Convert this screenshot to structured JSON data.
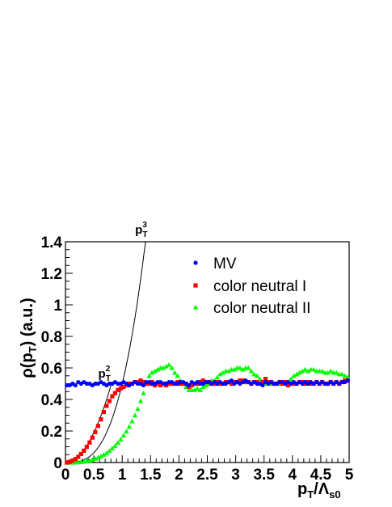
{
  "chart_data": {
    "type": "scatter",
    "xlabel": {
      "main": "p",
      "sub1": "T",
      "slash": "/Λ",
      "sub2": "s0"
    },
    "ylabel": {
      "prefix": "ρ(p",
      "sub": "T",
      "suffix": ") (a.u.)"
    },
    "xlim": [
      0,
      5
    ],
    "ylim": [
      0,
      1.4
    ],
    "x_ticks": [
      0,
      0.5,
      1,
      1.5,
      2,
      2.5,
      3,
      3.5,
      4,
      4.5,
      5
    ],
    "x_tick_labels": [
      "0",
      "0.5",
      "1",
      "1.5",
      "2",
      "2.5",
      "3",
      "3.5",
      "4",
      "4.5",
      "5"
    ],
    "y_ticks": [
      0,
      0.2,
      0.4,
      0.6,
      0.8,
      1.0,
      1.2,
      1.4
    ],
    "y_tick_labels": [
      "0",
      "0.2",
      "0.4",
      "0.6",
      "0.8",
      "1",
      "1.2",
      "1.4"
    ],
    "grid": false,
    "legend_position": "top-right",
    "series": [
      {
        "name": "MV",
        "color": "#0000ff",
        "marker": "circle",
        "x": [
          0.025,
          0.075,
          0.125,
          0.175,
          0.225,
          0.275,
          0.325,
          0.375,
          0.425,
          0.475,
          0.525,
          0.575,
          0.625,
          0.675,
          0.725,
          0.775,
          0.825,
          0.875,
          0.925,
          0.975,
          1.025,
          1.075,
          1.125,
          1.175,
          1.225,
          1.275,
          1.325,
          1.375,
          1.425,
          1.475,
          1.525,
          1.575,
          1.625,
          1.675,
          1.725,
          1.775,
          1.825,
          1.875,
          1.925,
          1.975,
          2.025,
          2.075,
          2.125,
          2.175,
          2.225,
          2.275,
          2.325,
          2.375,
          2.425,
          2.475,
          2.525,
          2.575,
          2.625,
          2.675,
          2.725,
          2.775,
          2.825,
          2.875,
          2.925,
          2.975,
          3.025,
          3.075,
          3.125,
          3.175,
          3.225,
          3.275,
          3.325,
          3.375,
          3.425,
          3.475,
          3.525,
          3.575,
          3.625,
          3.675,
          3.725,
          3.775,
          3.825,
          3.875,
          3.925,
          3.975,
          4.025,
          4.075,
          4.125,
          4.175,
          4.225,
          4.275,
          4.325,
          4.375,
          4.425,
          4.475,
          4.525,
          4.575,
          4.625,
          4.675,
          4.725,
          4.775,
          4.825,
          4.875,
          4.925,
          4.975
        ],
        "y": [
          0.49,
          0.49,
          0.5,
          0.49,
          0.51,
          0.5,
          0.51,
          0.5,
          0.5,
          0.49,
          0.5,
          0.5,
          0.51,
          0.5,
          0.49,
          0.5,
          0.5,
          0.51,
          0.5,
          0.5,
          0.51,
          0.5,
          0.49,
          0.5,
          0.51,
          0.5,
          0.5,
          0.49,
          0.51,
          0.51,
          0.5,
          0.5,
          0.51,
          0.51,
          0.5,
          0.5,
          0.51,
          0.51,
          0.5,
          0.5,
          0.51,
          0.51,
          0.5,
          0.49,
          0.51,
          0.5,
          0.51,
          0.5,
          0.5,
          0.51,
          0.51,
          0.5,
          0.51,
          0.5,
          0.51,
          0.5,
          0.5,
          0.51,
          0.52,
          0.5,
          0.51,
          0.5,
          0.51,
          0.52,
          0.51,
          0.5,
          0.51,
          0.5,
          0.5,
          0.49,
          0.51,
          0.5,
          0.51,
          0.5,
          0.5,
          0.51,
          0.51,
          0.5,
          0.51,
          0.5,
          0.51,
          0.5,
          0.51,
          0.5,
          0.51,
          0.5,
          0.51,
          0.5,
          0.51,
          0.5,
          0.51,
          0.5,
          0.5,
          0.51,
          0.5,
          0.51,
          0.5,
          0.51,
          0.51,
          0.52
        ]
      },
      {
        "name": "color neutral I",
        "color": "#ff0000",
        "marker": "square",
        "x": [
          0.025,
          0.075,
          0.125,
          0.175,
          0.225,
          0.275,
          0.325,
          0.375,
          0.425,
          0.475,
          0.525,
          0.575,
          0.625,
          0.675,
          0.725,
          0.775,
          0.825,
          0.875,
          0.925,
          0.975,
          1.025,
          1.075,
          1.125,
          1.175,
          1.225,
          1.275,
          1.325,
          1.375,
          1.425,
          1.475,
          1.525,
          1.575,
          1.625,
          1.675,
          1.725,
          1.775,
          1.825,
          1.875,
          1.925,
          1.975,
          2.025,
          2.075,
          2.125,
          2.175,
          2.225,
          2.275,
          2.325,
          2.375,
          2.425,
          2.475,
          2.525,
          2.575,
          2.625,
          2.675,
          2.725,
          2.775,
          2.825,
          2.875,
          2.925,
          2.975,
          3.025,
          3.075,
          3.125,
          3.175,
          3.225,
          3.275,
          3.325,
          3.375,
          3.425,
          3.475,
          3.525,
          3.575,
          3.625,
          3.675,
          3.725,
          3.775,
          3.825,
          3.875,
          3.925,
          3.975,
          4.025,
          4.075,
          4.125,
          4.175,
          4.225,
          4.275,
          4.325,
          4.375,
          4.425,
          4.475,
          4.525,
          4.575,
          4.625,
          4.675,
          4.725,
          4.775,
          4.825,
          4.875,
          4.925,
          4.975
        ],
        "y": [
          0.0,
          0.005,
          0.012,
          0.022,
          0.036,
          0.054,
          0.075,
          0.099,
          0.127,
          0.158,
          0.193,
          0.232,
          0.274,
          0.32,
          0.36,
          0.39,
          0.42,
          0.44,
          0.46,
          0.47,
          0.48,
          0.49,
          0.5,
          0.5,
          0.51,
          0.51,
          0.52,
          0.51,
          0.5,
          0.5,
          0.51,
          0.49,
          0.5,
          0.49,
          0.5,
          0.49,
          0.5,
          0.5,
          0.5,
          0.51,
          0.5,
          0.5,
          0.5,
          0.48,
          0.49,
          0.5,
          0.5,
          0.51,
          0.52,
          0.51,
          0.51,
          0.5,
          0.5,
          0.51,
          0.5,
          0.5,
          0.51,
          0.51,
          0.5,
          0.51,
          0.51,
          0.52,
          0.52,
          0.51,
          0.51,
          0.5,
          0.51,
          0.51,
          0.5,
          0.51,
          0.53,
          0.51,
          0.51,
          0.5,
          0.5,
          0.51,
          0.5,
          0.51,
          0.49,
          0.5,
          0.5,
          0.5,
          0.51,
          0.51,
          0.5,
          0.51,
          0.5,
          0.5,
          0.51,
          0.5,
          0.51,
          0.5,
          0.5,
          0.51,
          0.5,
          0.51,
          0.5,
          0.51,
          0.52,
          0.52
        ]
      },
      {
        "name": "color neutral II",
        "color": "#00ff00",
        "marker": "triangle",
        "x": [
          0.025,
          0.075,
          0.125,
          0.175,
          0.225,
          0.275,
          0.325,
          0.375,
          0.425,
          0.475,
          0.525,
          0.575,
          0.625,
          0.675,
          0.725,
          0.775,
          0.825,
          0.875,
          0.925,
          0.975,
          1.025,
          1.075,
          1.125,
          1.175,
          1.225,
          1.275,
          1.325,
          1.375,
          1.425,
          1.475,
          1.525,
          1.575,
          1.625,
          1.675,
          1.725,
          1.775,
          1.825,
          1.875,
          1.925,
          1.975,
          2.025,
          2.075,
          2.125,
          2.175,
          2.225,
          2.275,
          2.325,
          2.375,
          2.425,
          2.475,
          2.525,
          2.575,
          2.625,
          2.675,
          2.725,
          2.775,
          2.825,
          2.875,
          2.925,
          2.975,
          3.025,
          3.075,
          3.125,
          3.175,
          3.225,
          3.275,
          3.325,
          3.375,
          3.425,
          3.475,
          3.525,
          3.575,
          3.625,
          3.675,
          3.725,
          3.775,
          3.825,
          3.875,
          3.925,
          3.975,
          4.025,
          4.075,
          4.125,
          4.175,
          4.225,
          4.275,
          4.325,
          4.375,
          4.425,
          4.475,
          4.525,
          4.575,
          4.625,
          4.675,
          4.725,
          4.775,
          4.825,
          4.875,
          4.925,
          4.975
        ],
        "y": [
          0.0,
          0.0,
          0.0,
          0.001,
          0.002,
          0.004,
          0.006,
          0.009,
          0.013,
          0.018,
          0.024,
          0.032,
          0.04,
          0.05,
          0.06,
          0.074,
          0.09,
          0.106,
          0.126,
          0.148,
          0.172,
          0.198,
          0.228,
          0.262,
          0.3,
          0.34,
          0.39,
          0.44,
          0.5,
          0.55,
          0.57,
          0.58,
          0.59,
          0.6,
          0.6,
          0.61,
          0.62,
          0.6,
          0.57,
          0.55,
          0.52,
          0.5,
          0.48,
          0.46,
          0.46,
          0.46,
          0.47,
          0.46,
          0.48,
          0.49,
          0.5,
          0.52,
          0.52,
          0.54,
          0.56,
          0.57,
          0.58,
          0.58,
          0.59,
          0.59,
          0.6,
          0.6,
          0.59,
          0.6,
          0.6,
          0.58,
          0.56,
          0.55,
          0.53,
          0.51,
          0.5,
          0.5,
          0.5,
          0.5,
          0.5,
          0.5,
          0.51,
          0.51,
          0.51,
          0.53,
          0.55,
          0.56,
          0.57,
          0.58,
          0.59,
          0.58,
          0.59,
          0.59,
          0.58,
          0.58,
          0.58,
          0.57,
          0.57,
          0.58,
          0.57,
          0.57,
          0.56,
          0.56,
          0.55,
          0.54
        ]
      }
    ],
    "fit_curves": [
      {
        "label_base": "p",
        "label_sub": "T",
        "label_sup": "2",
        "power": 2,
        "coef": 0.76,
        "x_range": [
          0,
          0.8
        ]
      },
      {
        "label_base": "p",
        "label_sub": "T",
        "label_sup": "3",
        "power": 3,
        "coef": 0.5,
        "x_range": [
          0,
          1.45
        ]
      }
    ]
  }
}
